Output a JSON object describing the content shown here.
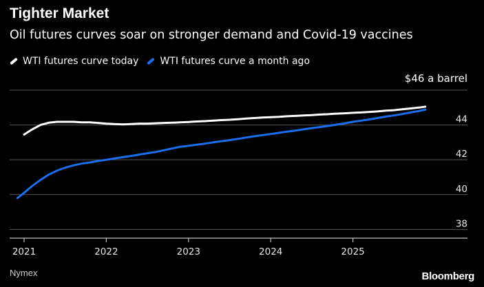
{
  "header": {
    "title": "Tighter Market",
    "subtitle": "Oil futures curves soar on stronger demand and Covid-19 vaccines"
  },
  "legend": {
    "items": [
      {
        "label": "WTI futures curve today",
        "color": "#ffffff"
      },
      {
        "label": "WTI futures curve a month ago",
        "color": "#1a6ff0"
      }
    ]
  },
  "unit_label": "$46 a barrel",
  "footer": {
    "source": "Nymex",
    "brand": "Bloomberg"
  },
  "chart_data": {
    "type": "line",
    "xlabel": "",
    "ylabel": "",
    "ylim": [
      37.5,
      46.0
    ],
    "xlim": [
      2020.92,
      2026.0
    ],
    "yticks": [
      38,
      40,
      42,
      44
    ],
    "xticks": [
      {
        "value": 2021.0,
        "label": "2021"
      },
      {
        "value": 2022.0,
        "label": "2022"
      },
      {
        "value": 2023.0,
        "label": "2023"
      },
      {
        "value": 2024.0,
        "label": "2024"
      },
      {
        "value": 2025.0,
        "label": "2025"
      }
    ],
    "grid": true,
    "series": [
      {
        "name": "WTI futures curve today",
        "color": "#ffffff",
        "x": [
          2021.0,
          2021.1,
          2021.2,
          2021.3,
          2021.4,
          2021.5,
          2021.6,
          2021.7,
          2021.8,
          2021.9,
          2022.0,
          2022.1,
          2022.2,
          2022.3,
          2022.4,
          2022.5,
          2022.6,
          2022.7,
          2022.8,
          2022.9,
          2023.0,
          2023.1,
          2023.2,
          2023.3,
          2023.4,
          2023.5,
          2023.6,
          2023.7,
          2023.8,
          2023.9,
          2024.0,
          2024.1,
          2024.2,
          2024.3,
          2024.4,
          2024.5,
          2024.6,
          2024.7,
          2024.8,
          2024.9,
          2025.0,
          2025.1,
          2025.2,
          2025.3,
          2025.4,
          2025.5,
          2025.6,
          2025.7,
          2025.8,
          2025.88
        ],
        "y": [
          43.45,
          43.75,
          44.0,
          44.13,
          44.18,
          44.18,
          44.18,
          44.15,
          44.15,
          44.12,
          44.08,
          44.05,
          44.03,
          44.05,
          44.08,
          44.08,
          44.1,
          44.12,
          44.13,
          44.15,
          44.17,
          44.2,
          44.22,
          44.25,
          44.28,
          44.3,
          44.33,
          44.37,
          44.4,
          44.43,
          44.45,
          44.47,
          44.5,
          44.52,
          44.55,
          44.57,
          44.6,
          44.62,
          44.65,
          44.67,
          44.7,
          44.72,
          44.75,
          44.78,
          44.82,
          44.85,
          44.9,
          44.95,
          45.0,
          45.05
        ]
      },
      {
        "name": "WTI futures curve a month ago",
        "color": "#1a6ff0",
        "x": [
          2020.92,
          2021.0,
          2021.1,
          2021.2,
          2021.3,
          2021.4,
          2021.5,
          2021.6,
          2021.7,
          2021.8,
          2021.9,
          2022.0,
          2022.1,
          2022.2,
          2022.3,
          2022.4,
          2022.5,
          2022.6,
          2022.7,
          2022.8,
          2022.9,
          2023.0,
          2023.1,
          2023.2,
          2023.3,
          2023.4,
          2023.5,
          2023.6,
          2023.7,
          2023.8,
          2023.9,
          2024.0,
          2024.1,
          2024.2,
          2024.3,
          2024.4,
          2024.5,
          2024.6,
          2024.7,
          2024.8,
          2024.9,
          2025.0,
          2025.1,
          2025.2,
          2025.3,
          2025.4,
          2025.5,
          2025.6,
          2025.7,
          2025.8,
          2025.88
        ],
        "y": [
          39.8,
          40.1,
          40.5,
          40.85,
          41.15,
          41.38,
          41.55,
          41.68,
          41.78,
          41.85,
          41.93,
          42.0,
          42.08,
          42.15,
          42.22,
          42.3,
          42.38,
          42.45,
          42.55,
          42.65,
          42.75,
          42.8,
          42.87,
          42.93,
          43.0,
          43.07,
          43.13,
          43.2,
          43.28,
          43.35,
          43.42,
          43.48,
          43.55,
          43.62,
          43.68,
          43.75,
          43.82,
          43.88,
          43.95,
          44.02,
          44.1,
          44.18,
          44.25,
          44.32,
          44.4,
          44.48,
          44.55,
          44.63,
          44.72,
          44.8,
          44.88
        ]
      }
    ]
  }
}
